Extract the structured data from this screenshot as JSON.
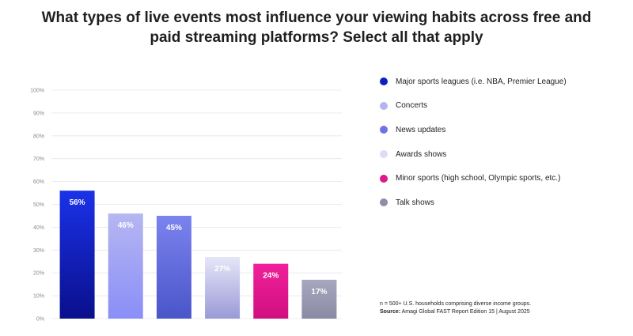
{
  "chart_data": {
    "type": "bar",
    "title": "What types of live events most influence your viewing habits across free and paid streaming platforms? Select all that apply",
    "categories": [
      "Major sports leagues (i.e. NBA, Premier League)",
      "Concerts",
      "News updates",
      "Awards shows",
      "Minor sports (high school, Olympic sports, etc.)",
      "Talk shows"
    ],
    "values": [
      56,
      46,
      45,
      27,
      24,
      17
    ],
    "data_labels": [
      "56%",
      "46%",
      "45%",
      "27%",
      "24%",
      "17%"
    ],
    "ylim": [
      0,
      100
    ],
    "yticks": [
      "0%",
      "10%",
      "20%",
      "30%",
      "40%",
      "50%",
      "60%",
      "70%",
      "80%",
      "90%",
      "100%"
    ],
    "grid": true,
    "legend_position": "right",
    "colors": [
      [
        "#1a32e8",
        "#0a0f8c"
      ],
      [
        "#b6b6f2",
        "#8a8ef7"
      ],
      [
        "#7b83ee",
        "#4a55c8"
      ],
      [
        "#e6e6f8",
        "#9a9ad8"
      ],
      [
        "#f0209a",
        "#d01080"
      ],
      [
        "#a7a7bf",
        "#8a8aa4"
      ]
    ],
    "legend_colors": [
      "#0f1fc4",
      "#b3b6ee",
      "#6d73e6",
      "#dcdcf5",
      "#e0168a",
      "#8f8ea6"
    ]
  },
  "notes": {
    "sample": "n = 500+ U.S. households comprising diverse income groups.",
    "source_label": "Source:",
    "source_text": "Amagi Global FAST Report Edition 15 | August 2025"
  }
}
